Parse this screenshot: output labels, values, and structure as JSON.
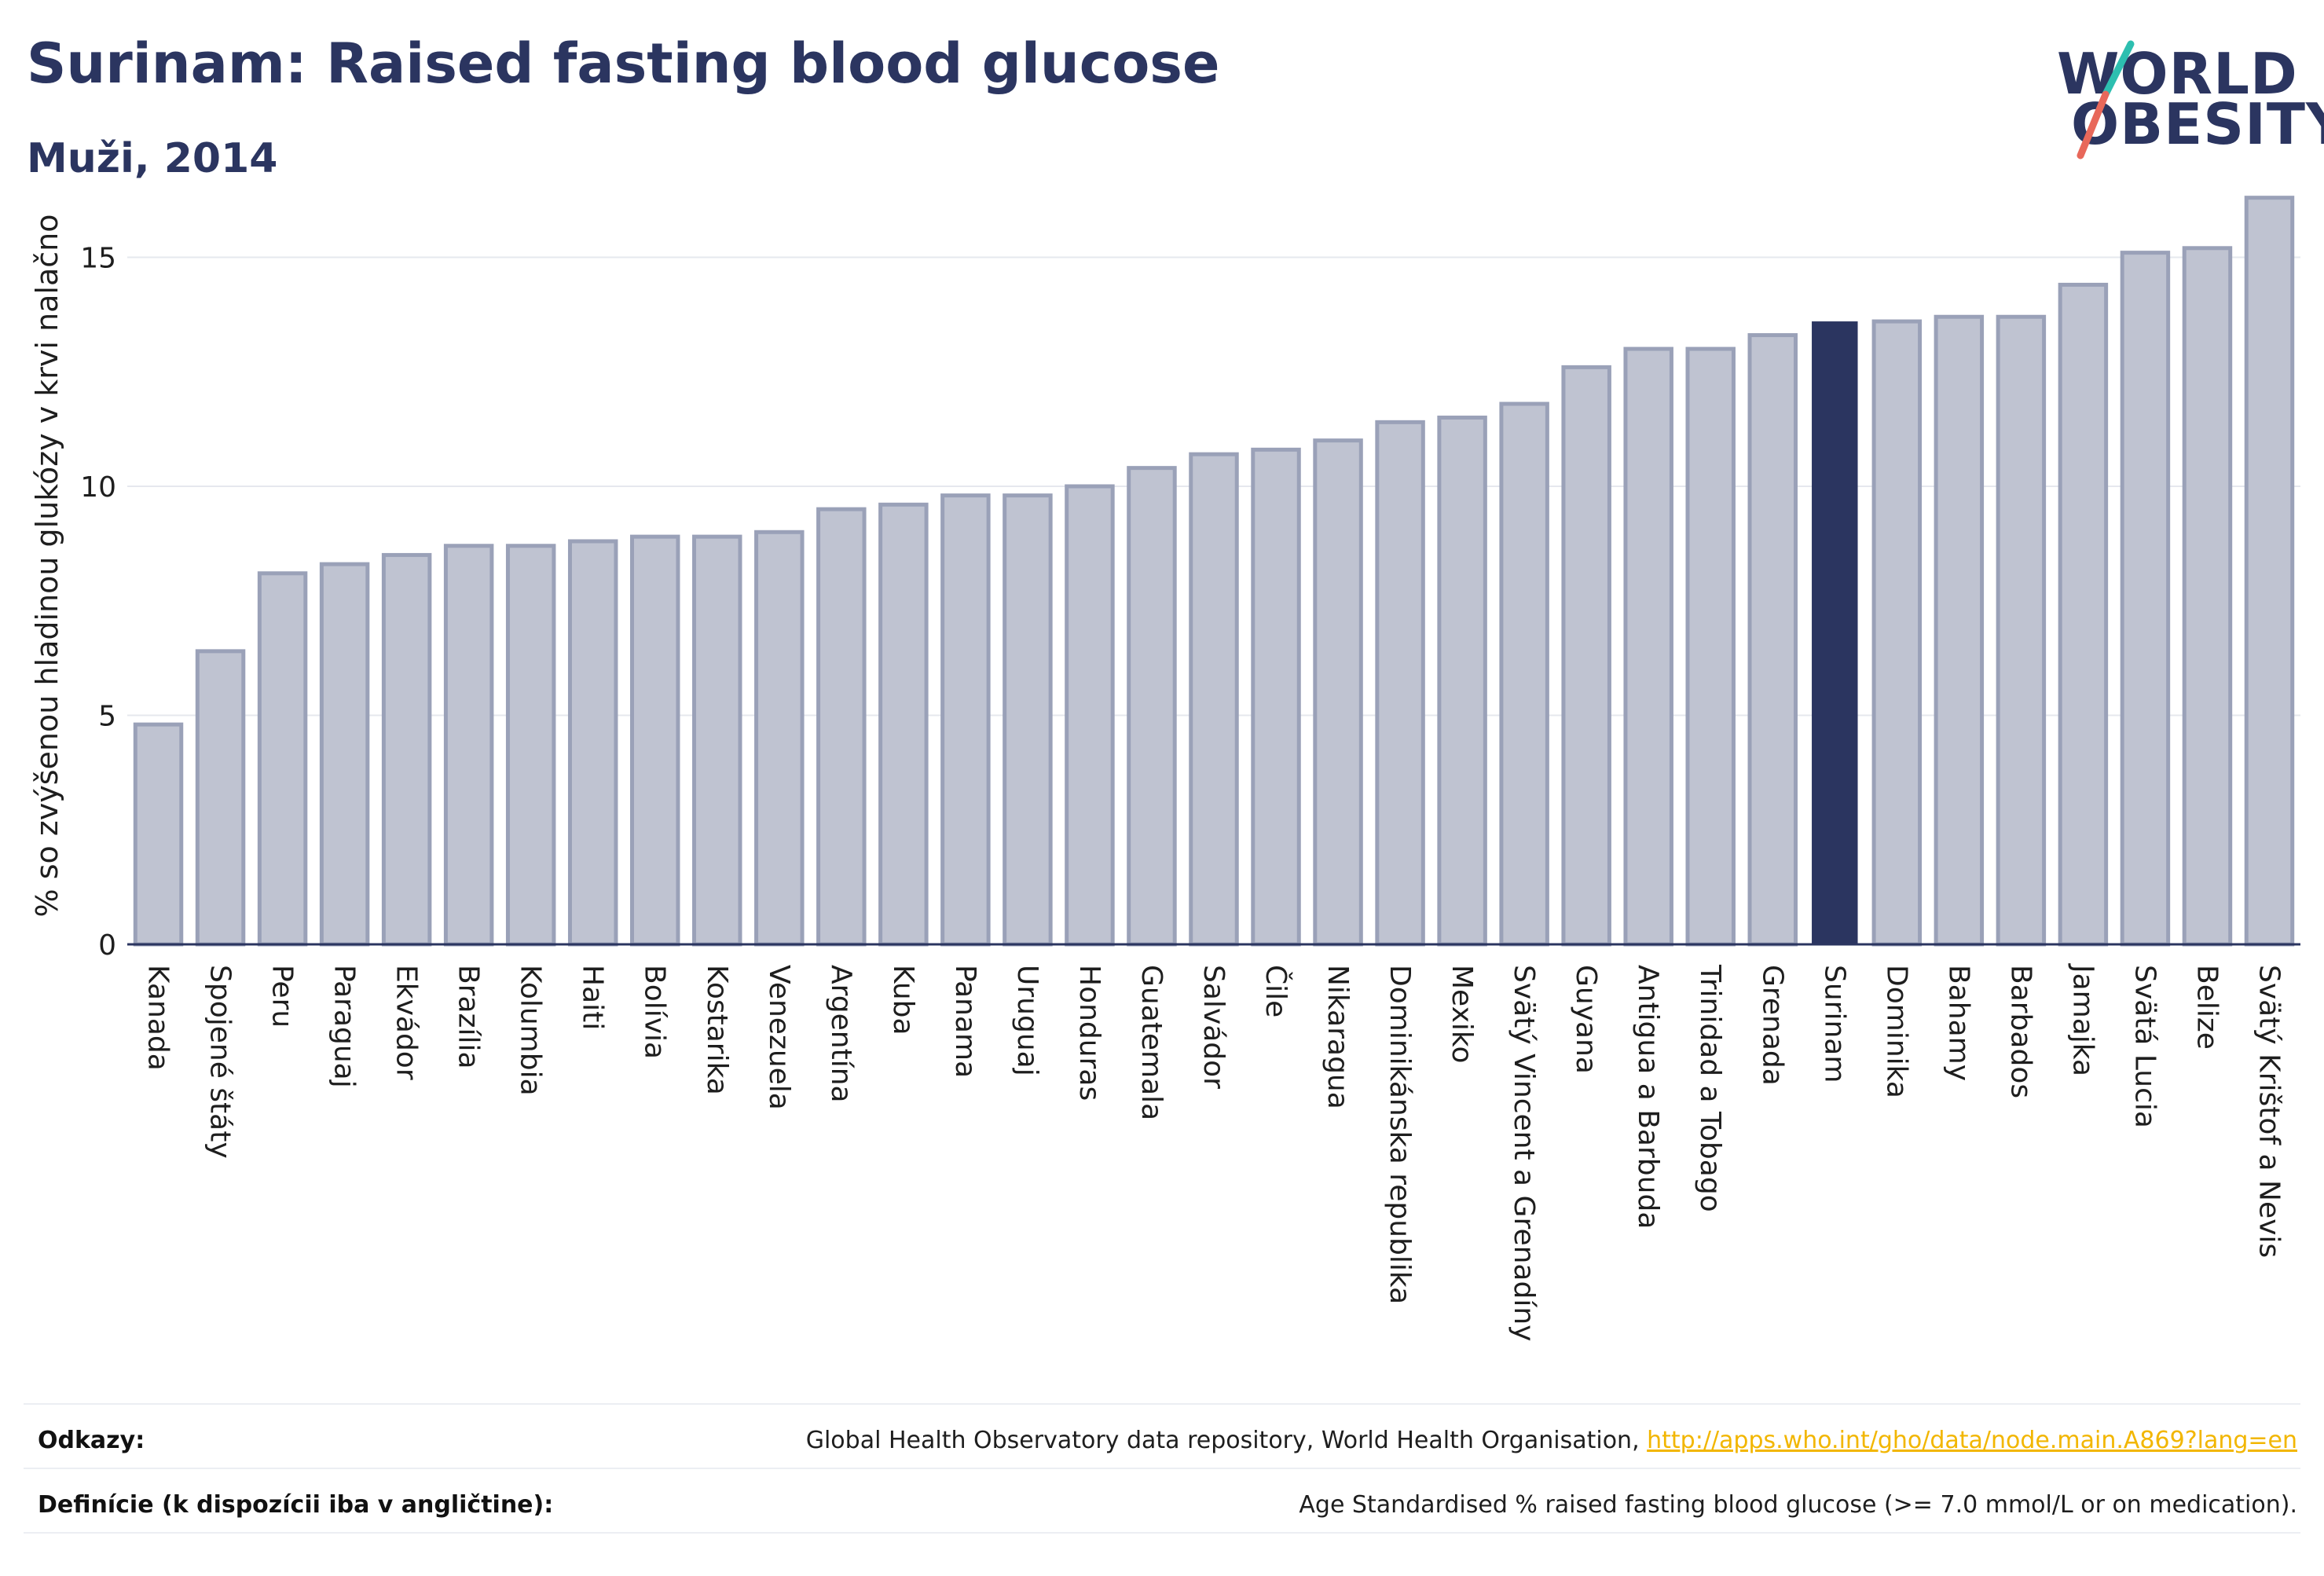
{
  "header": {
    "title": "Surinam: Raised fasting blood glucose",
    "subtitle": "Muži, 2014"
  },
  "logo": {
    "line1": "WORLD",
    "line2": "OBESITY"
  },
  "colors": {
    "accent": "#2b3560",
    "bar_default": "#bfc3d1",
    "bar_border": "#9aa1b8",
    "grid": "#e6e8ee",
    "link": "#f2b600",
    "logo_slash_top": "#2dbfb0",
    "logo_slash_bottom": "#e8685a"
  },
  "chart_data": {
    "type": "bar",
    "title": "Surinam: Raised fasting blood glucose",
    "subtitle": "Muži, 2014",
    "xlabel": "",
    "ylabel": "% so zvýšenou hladinou glukózy v krvi nalačno",
    "ylim": [
      0,
      16.5
    ],
    "yticks": [
      0,
      5,
      10,
      15
    ],
    "grid": true,
    "highlight": "Surinam",
    "categories": [
      "Kanada",
      "Spojené štáty",
      "Peru",
      "Paraguaj",
      "Ekvádor",
      "Brazília",
      "Kolumbia",
      "Haiti",
      "Bolívia",
      "Kostarika",
      "Venezuela",
      "Argentína",
      "Kuba",
      "Panama",
      "Uruguaj",
      "Honduras",
      "Guatemala",
      "Salvádor",
      "Čile",
      "Nikaragua",
      "Dominikánska republika",
      "Mexiko",
      "Svätý Vincent a Grenadíny",
      "Guyana",
      "Antigua a Barbuda",
      "Trinidad a Tobago",
      "Grenada",
      "Surinam",
      "Dominika",
      "Bahamy",
      "Barbados",
      "Jamajka",
      "Svätá Lucia",
      "Belize",
      "Svätý Krištof a Nevis"
    ],
    "values": [
      4.8,
      6.4,
      8.1,
      8.3,
      8.5,
      8.7,
      8.7,
      8.8,
      8.9,
      8.9,
      9.0,
      9.5,
      9.6,
      9.8,
      9.8,
      10.0,
      10.4,
      10.7,
      10.8,
      11.0,
      11.4,
      11.5,
      11.8,
      12.6,
      13.0,
      13.0,
      13.3,
      13.6,
      13.6,
      13.7,
      13.7,
      14.4,
      15.1,
      15.2,
      16.3
    ]
  },
  "footer": {
    "references_label": "Odkazy:",
    "references_text": "Global Health Observatory data repository, World Health Organisation, ",
    "references_link": "http://apps.who.int/gho/data/node.main.A869?lang=en",
    "definition_label": "Definície (k dispozícii iba v angličtine):",
    "definition_text": "Age Standardised % raised fasting blood glucose (>= 7.0 mmol/L or on medication)."
  }
}
